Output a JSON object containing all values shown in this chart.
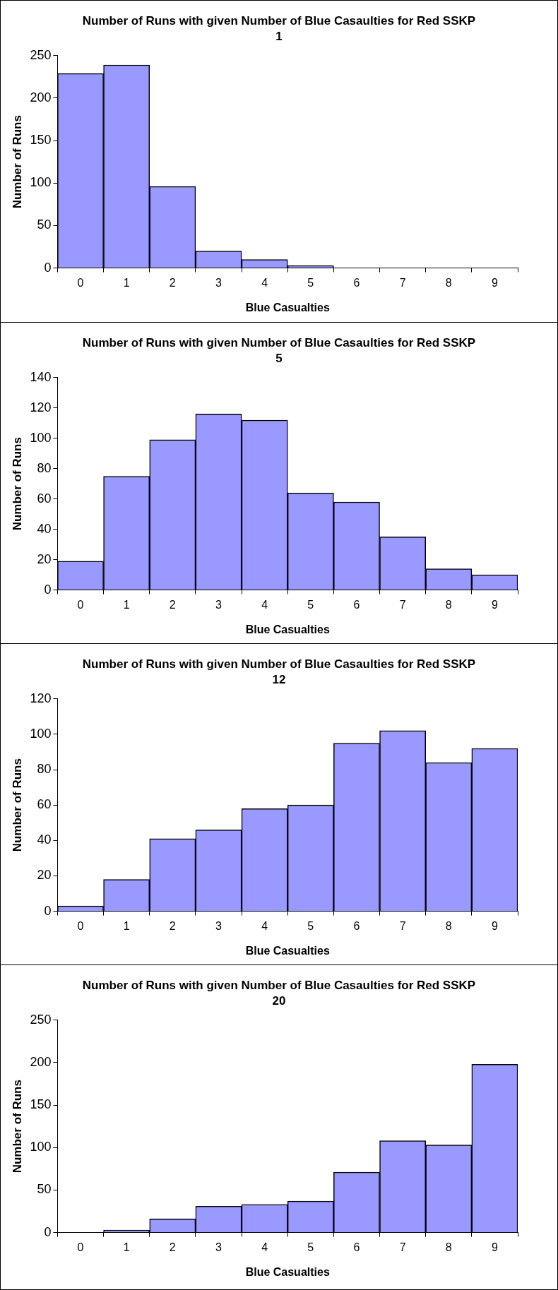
{
  "chart_data": [
    {
      "type": "bar",
      "title": "Number of Runs with given Number of Blue Casaulties for Red SSKP 1",
      "xlabel": "Blue Casualties",
      "ylabel": "Number of Runs",
      "categories": [
        "0",
        "1",
        "2",
        "3",
        "4",
        "5",
        "6",
        "7",
        "8",
        "9"
      ],
      "values": [
        229,
        239,
        96,
        20,
        10,
        3,
        0,
        0,
        0,
        0
      ],
      "color": "#9999ff",
      "ylim": [
        0,
        250
      ],
      "yticks": [
        0,
        50,
        100,
        150,
        200,
        250
      ],
      "grid": false,
      "legend": false
    },
    {
      "type": "bar",
      "title": "Number of Runs with given Number of Blue Casaulties for Red SSKP 5",
      "xlabel": "Blue Casualties",
      "ylabel": "Number of Runs",
      "categories": [
        "0",
        "1",
        "2",
        "3",
        "4",
        "5",
        "6",
        "7",
        "8",
        "9"
      ],
      "values": [
        19,
        75,
        99,
        116,
        112,
        64,
        58,
        35,
        14,
        10
      ],
      "color": "#9999ff",
      "ylim": [
        0,
        140
      ],
      "yticks": [
        0,
        20,
        40,
        60,
        80,
        100,
        120,
        140
      ],
      "grid": false,
      "legend": false
    },
    {
      "type": "bar",
      "title": "Number of Runs with given Number of Blue Casaulties for Red SSKP 12",
      "xlabel": "Blue Casualties",
      "ylabel": "Number of Runs",
      "categories": [
        "0",
        "1",
        "2",
        "3",
        "4",
        "5",
        "6",
        "7",
        "8",
        "9"
      ],
      "values": [
        3,
        18,
        41,
        46,
        58,
        60,
        95,
        102,
        84,
        92
      ],
      "color": "#9999ff",
      "ylim": [
        0,
        120
      ],
      "yticks": [
        0,
        20,
        40,
        60,
        80,
        100,
        120
      ],
      "grid": false,
      "legend": false
    },
    {
      "type": "bar",
      "title": "Number of Runs with given Number of Blue Casaulties for Red SSKP 20",
      "xlabel": "Blue Casualties",
      "ylabel": "Number of Runs",
      "categories": [
        "0",
        "1",
        "2",
        "3",
        "4",
        "5",
        "6",
        "7",
        "8",
        "9"
      ],
      "values": [
        0,
        3,
        16,
        31,
        33,
        37,
        71,
        108,
        103,
        198
      ],
      "color": "#9999ff",
      "ylim": [
        0,
        250
      ],
      "yticks": [
        0,
        50,
        100,
        150,
        200,
        250
      ],
      "grid": false,
      "legend": false
    }
  ]
}
